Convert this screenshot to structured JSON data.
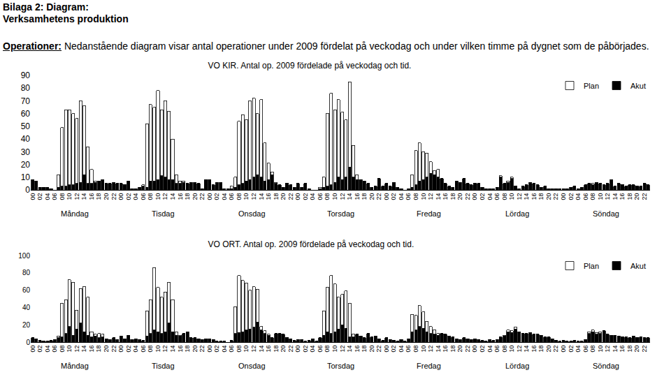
{
  "header": {
    "title": "Bilaga 2: Diagram:",
    "subtitle": "Verksamhetens produktion",
    "label": "Operationer:",
    "text": "Nedanstående diagram visar antal operationer under 2009 fördelat på veckodag och under vilken timme på dygnet som de påbörjades."
  },
  "chart_data": [
    {
      "type": "bar",
      "stacked": true,
      "grid": false,
      "legend": "top right",
      "title": "VO KIR. Antal op. 2009 fördelade på veckodag och tid.",
      "annotations": [
        "Måndag",
        "Tisdag",
        "Onsdag",
        "Torsdag",
        "Fredag",
        "Lördag",
        "Söndag"
      ],
      "ylim": [
        0,
        90
      ],
      "yticks": [
        0,
        10,
        20,
        30,
        40,
        50,
        60,
        70,
        80,
        90
      ],
      "categories": [
        "00",
        null,
        "02",
        null,
        "04",
        null,
        "06",
        null,
        "08",
        null,
        "10",
        null,
        "12",
        null,
        "14",
        null,
        "16",
        null,
        "18",
        null,
        "20",
        null,
        "22",
        null,
        "00",
        null,
        "02",
        null,
        "04",
        null,
        "06",
        null,
        "08",
        null,
        "10",
        null,
        "12",
        null,
        "14",
        null,
        "16",
        null,
        "18",
        null,
        "20",
        null,
        "22",
        null,
        "00",
        null,
        "02",
        null,
        "04",
        null,
        "06",
        null,
        "08",
        null,
        "10",
        null,
        "12",
        null,
        "14",
        null,
        "16",
        null,
        "18",
        null,
        "20",
        null,
        "22",
        null,
        "00",
        null,
        "02",
        null,
        "04",
        null,
        "06",
        null,
        "08",
        null,
        "10",
        null,
        "12",
        null,
        "14",
        null,
        "16",
        null,
        "18",
        null,
        "20",
        null,
        "22",
        null,
        "00",
        null,
        "02",
        null,
        "04",
        null,
        "06",
        null,
        "08",
        null,
        "10",
        null,
        "12",
        null,
        "14",
        null,
        "16",
        null,
        "18",
        null,
        "20",
        null,
        "22",
        null,
        "00",
        null,
        "02",
        null,
        "04",
        null,
        "06",
        null,
        "08",
        null,
        "10",
        null,
        "12",
        null,
        "14",
        null,
        "16",
        null,
        "18",
        null,
        "20",
        null,
        "22",
        null,
        "00",
        null,
        "02",
        null,
        "04",
        null,
        "06",
        null,
        "08",
        null,
        "10",
        null,
        "12",
        null,
        "14",
        null,
        "16",
        null,
        "18",
        null,
        "20",
        null,
        "22",
        null
      ],
      "series": [
        {
          "name": "Plan",
          "color": "#ffffff",
          "values": [
            0,
            0,
            0,
            0,
            0,
            0,
            0,
            10,
            46,
            60,
            59,
            56,
            51,
            64,
            54,
            29,
            11,
            1,
            0,
            0,
            0,
            0,
            0,
            0,
            0,
            0,
            0,
            0,
            0,
            0,
            1,
            50,
            60,
            58,
            70,
            52,
            60,
            54,
            32,
            7,
            2,
            1,
            0,
            0,
            0,
            0,
            0,
            0,
            0,
            0,
            0,
            0,
            0,
            0,
            2,
            8,
            50,
            54,
            48,
            62,
            62,
            48,
            61,
            30,
            13,
            2,
            1,
            0,
            0,
            0,
            0,
            0,
            0,
            0,
            0,
            0,
            0,
            0,
            1,
            8,
            57,
            72,
            57,
            61,
            53,
            45,
            67,
            25,
            4,
            0,
            0,
            0,
            0,
            0,
            0,
            0,
            0,
            0,
            0,
            0,
            0,
            0,
            0,
            10,
            27,
            30,
            22,
            19,
            9,
            3,
            6,
            0,
            0,
            0,
            0,
            0,
            0,
            0,
            0,
            0,
            0,
            0,
            0,
            0,
            0,
            0,
            0,
            1,
            0,
            1,
            1,
            0,
            0,
            0,
            0,
            0,
            0,
            0,
            0,
            0,
            0,
            0,
            0,
            0,
            0,
            0,
            0,
            0,
            0,
            0,
            0,
            0,
            1,
            0,
            0,
            0,
            0,
            0,
            0,
            0,
            0,
            0,
            0,
            0,
            0,
            0,
            0,
            0
          ]
        },
        {
          "name": "Akut",
          "color": "#000000",
          "values": [
            8,
            7,
            2,
            2,
            2,
            1,
            0,
            2,
            3,
            3,
            4,
            4,
            5,
            6,
            12,
            5,
            5,
            6,
            7,
            8,
            5,
            5,
            6,
            5,
            5,
            4,
            7,
            1,
            1,
            2,
            3,
            2,
            7,
            7,
            8,
            11,
            10,
            8,
            8,
            5,
            5,
            6,
            5,
            6,
            6,
            5,
            1,
            8,
            8,
            4,
            6,
            6,
            1,
            1,
            1,
            2,
            4,
            5,
            7,
            8,
            10,
            12,
            10,
            7,
            8,
            12,
            5,
            4,
            2,
            5,
            4,
            2,
            5,
            2,
            5,
            1,
            0,
            0,
            1,
            2,
            3,
            4,
            6,
            10,
            8,
            10,
            18,
            10,
            8,
            8,
            7,
            5,
            2,
            3,
            9,
            3,
            5,
            3,
            6,
            2,
            1,
            0,
            1,
            2,
            4,
            7,
            8,
            10,
            13,
            12,
            10,
            9,
            5,
            3,
            2,
            7,
            6,
            9,
            5,
            4,
            5,
            5,
            2,
            1,
            1,
            1,
            2,
            10,
            5,
            6,
            9,
            3,
            1,
            3,
            4,
            6,
            5,
            4,
            2,
            3,
            1,
            1,
            1,
            1,
            1,
            1,
            2,
            3,
            1,
            2,
            4,
            5,
            4,
            6,
            5,
            4,
            5,
            8,
            3,
            5,
            4,
            3,
            4,
            4,
            3,
            3,
            5,
            4
          ]
        }
      ]
    },
    {
      "type": "bar",
      "stacked": true,
      "grid": false,
      "legend": "top right",
      "title": "VO ORT. Antal op. 2009 fördelade på veckodag och tid.",
      "annotations": [
        "Måndag",
        "Tisdag",
        "Onsdag",
        "Torsdag",
        "Fredag",
        "Lördag",
        "Söndag"
      ],
      "ylim": [
        0,
        100
      ],
      "yticks": [
        0,
        20,
        40,
        60,
        80,
        100
      ],
      "categories": [
        "00",
        null,
        "02",
        null,
        "04",
        null,
        "06",
        null,
        "08",
        null,
        "10",
        null,
        "12",
        null,
        "14",
        null,
        "16",
        null,
        "18",
        null,
        "20",
        null,
        "22",
        null,
        "00",
        null,
        "02",
        null,
        "04",
        null,
        "06",
        null,
        "08",
        null,
        "10",
        null,
        "12",
        null,
        "14",
        null,
        "16",
        null,
        "18",
        null,
        "20",
        null,
        "22",
        null,
        "00",
        null,
        "02",
        null,
        "04",
        null,
        "06",
        null,
        "08",
        null,
        "10",
        null,
        "12",
        null,
        "14",
        null,
        "16",
        null,
        "18",
        null,
        "20",
        null,
        "22",
        null,
        "00",
        null,
        "02",
        null,
        "04",
        null,
        "06",
        null,
        "08",
        null,
        "10",
        null,
        "12",
        null,
        "14",
        null,
        "16",
        null,
        "18",
        null,
        "20",
        null,
        "22",
        null,
        "00",
        null,
        "02",
        null,
        "04",
        null,
        "06",
        null,
        "08",
        null,
        "10",
        null,
        "12",
        null,
        "14",
        null,
        "16",
        null,
        "18",
        null,
        "20",
        null,
        "22",
        null,
        "00",
        null,
        "02",
        null,
        "04",
        null,
        "06",
        null,
        "08",
        null,
        "10",
        null,
        "12",
        null,
        "14",
        null,
        "16",
        null,
        "18",
        null,
        "20",
        null,
        "22",
        null,
        "00",
        null,
        "02",
        null,
        "04",
        null,
        "06",
        null,
        "08",
        null,
        "10",
        null,
        "12",
        null,
        "14",
        null,
        "16",
        null,
        "18",
        null,
        "20",
        null,
        "22",
        null
      ],
      "series": [
        {
          "name": "Plan",
          "color": "#ffffff",
          "values": [
            0,
            0,
            0,
            0,
            0,
            0,
            0,
            2,
            39,
            39,
            54,
            61,
            22,
            40,
            52,
            44,
            6,
            2,
            5,
            3,
            0,
            0,
            0,
            0,
            0,
            0,
            0,
            0,
            0,
            0,
            0,
            29,
            39,
            72,
            51,
            42,
            46,
            47,
            37,
            4,
            1,
            0,
            0,
            0,
            0,
            0,
            0,
            0,
            0,
            0,
            0,
            0,
            0,
            0,
            0,
            31,
            66,
            59,
            54,
            45,
            47,
            38,
            4,
            3,
            1,
            0,
            0,
            0,
            0,
            0,
            0,
            0,
            0,
            0,
            0,
            0,
            0,
            0,
            0,
            28,
            51,
            67,
            55,
            37,
            35,
            43,
            39,
            3,
            0,
            0,
            0,
            0,
            0,
            0,
            0,
            0,
            0,
            0,
            0,
            0,
            0,
            0,
            0,
            20,
            17,
            24,
            19,
            12,
            8,
            5,
            2,
            0,
            0,
            0,
            0,
            0,
            0,
            0,
            0,
            0,
            0,
            0,
            0,
            0,
            0,
            0,
            0,
            0,
            1,
            2,
            2,
            2,
            0,
            0,
            0,
            0,
            0,
            0,
            0,
            0,
            0,
            0,
            0,
            0,
            0,
            0,
            0,
            0,
            0,
            0,
            0,
            2,
            2,
            2,
            2,
            0,
            0,
            0,
            0,
            0,
            0,
            0,
            0,
            0,
            0,
            0,
            0,
            0
          ]
        },
        {
          "name": "Akut",
          "color": "#000000",
          "values": [
            5,
            4,
            2,
            1,
            1,
            2,
            3,
            5,
            6,
            10,
            18,
            8,
            15,
            22,
            12,
            8,
            6,
            7,
            5,
            6,
            4,
            3,
            5,
            3,
            7,
            4,
            8,
            3,
            4,
            3,
            2,
            7,
            10,
            14,
            12,
            10,
            12,
            22,
            12,
            8,
            7,
            10,
            12,
            5,
            5,
            4,
            3,
            4,
            4,
            3,
            1,
            1,
            1,
            0,
            2,
            10,
            11,
            12,
            14,
            15,
            17,
            23,
            14,
            10,
            8,
            5,
            10,
            10,
            9,
            5,
            4,
            2,
            3,
            3,
            1,
            2,
            4,
            1,
            5,
            8,
            12,
            10,
            12,
            15,
            20,
            16,
            6,
            6,
            9,
            7,
            5,
            10,
            6,
            7,
            4,
            2,
            5,
            3,
            2,
            1,
            3,
            1,
            4,
            12,
            14,
            18,
            16,
            12,
            10,
            9,
            8,
            10,
            9,
            7,
            6,
            4,
            3,
            5,
            4,
            3,
            4,
            3,
            2,
            1,
            3,
            2,
            3,
            6,
            7,
            12,
            11,
            15,
            12,
            10,
            10,
            11,
            9,
            9,
            8,
            6,
            6,
            4,
            2,
            1,
            2,
            1,
            1,
            2,
            1,
            1,
            3,
            10,
            12,
            9,
            10,
            13,
            9,
            8,
            8,
            7,
            6,
            6,
            5,
            7,
            5,
            6,
            5,
            5
          ]
        }
      ]
    }
  ]
}
